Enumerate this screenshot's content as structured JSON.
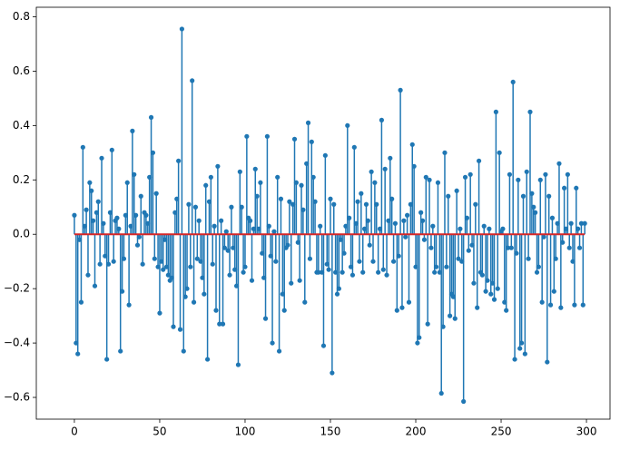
{
  "chart_data": {
    "type": "stem",
    "color": "#1f77b4",
    "baseline_color": "#d62728",
    "xlim": [
      -22.3,
      313.8
    ],
    "ylim": [
      -0.68,
      0.835
    ],
    "xticks": [
      0,
      50,
      100,
      150,
      200,
      250,
      300
    ],
    "yticks": [
      {
        "value": -0.6,
        "label": "−0.6"
      },
      {
        "value": -0.4,
        "label": "−0.4"
      },
      {
        "value": -0.2,
        "label": "−0.2"
      },
      {
        "value": 0,
        "label": "0.0"
      },
      0.2,
      0.4,
      0.6,
      0.8
    ],
    "values": [
      0.07,
      -0.4,
      -0.44,
      -0.02,
      -0.25,
      0.32,
      0.03,
      0.09,
      -0.15,
      0.19,
      0.16,
      0.05,
      -0.19,
      0.08,
      0.12,
      -0.11,
      0.28,
      0.04,
      -0.08,
      -0.46,
      -0.11,
      0.08,
      0.31,
      -0.1,
      0.05,
      0.06,
      0.02,
      -0.43,
      -0.21,
      -0.09,
      0.07,
      0.19,
      -0.26,
      0.03,
      0.38,
      0.22,
      0.07,
      -0.04,
      -0.01,
      0.14,
      -0.11,
      0.08,
      0.07,
      0.04,
      0.21,
      0.43,
      0.3,
      -0.09,
      0.15,
      -0.12,
      -0.29,
      -0.1,
      -0.13,
      -0.02,
      -0.12,
      -0.15,
      -0.17,
      -0.16,
      -0.34,
      0.08,
      0.13,
      0.27,
      -0.35,
      0.755,
      -0.43,
      -0.23,
      -0.2,
      0.11,
      -0.12,
      0.565,
      -0.25,
      0.1,
      -0.09,
      0.05,
      -0.1,
      -0.16,
      -0.22,
      0.18,
      -0.46,
      0.12,
      0.21,
      -0.11,
      0.03,
      -0.28,
      0.25,
      -0.33,
      0.05,
      -0.33,
      -0.05,
      0.01,
      -0.06,
      -0.15,
      0.1,
      -0.05,
      -0.13,
      -0.19,
      -0.48,
      0.23,
      0.1,
      -0.14,
      -0.12,
      0.36,
      0.06,
      0.05,
      -0.17,
      0.02,
      0.24,
      0.14,
      0.02,
      0.19,
      -0.07,
      -0.16,
      -0.31,
      0.36,
      0.03,
      -0.08,
      -0.4,
      0.01,
      -0.1,
      0.21,
      -0.43,
      0.13,
      -0.22,
      -0.28,
      -0.05,
      -0.04,
      0.12,
      -0.18,
      0.11,
      0.35,
      0.19,
      -0.03,
      -0.17,
      0.18,
      0.09,
      -0.25,
      0.26,
      0.41,
      -0.09,
      0.34,
      0.21,
      0.12,
      -0.14,
      -0.14,
      0.03,
      -0.14,
      -0.41,
      0.29,
      -0.11,
      -0.13,
      0.13,
      -0.51,
      0.11,
      -0.14,
      -0.22,
      -0.2,
      -0.02,
      -0.14,
      -0.07,
      0.03,
      0.4,
      0.06,
      -0.12,
      -0.15,
      0.32,
      0.04,
      0.12,
      -0.1,
      0.15,
      -0.14,
      0.02,
      0.11,
      0.05,
      -0.04,
      0.23,
      -0.1,
      0.19,
      0.11,
      -0.14,
      0.02,
      0.42,
      -0.13,
      0.24,
      -0.15,
      0.05,
      0.28,
      0.13,
      -0.1,
      0.04,
      -0.28,
      -0.08,
      0.53,
      -0.27,
      0.05,
      -0.01,
      0.07,
      -0.25,
      0.11,
      0.33,
      0.25,
      -0.12,
      -0.4,
      -0.38,
      0.08,
      0.05,
      -0.02,
      0.21,
      -0.33,
      0.2,
      -0.05,
      0.03,
      -0.14,
      -0.12,
      0.19,
      -0.14,
      -0.585,
      -0.34,
      0.3,
      -0.12,
      0.14,
      -0.3,
      -0.22,
      -0.23,
      -0.31,
      0.16,
      -0.09,
      0.02,
      -0.1,
      -0.615,
      0.21,
      0.06,
      -0.06,
      0.22,
      -0.04,
      -0.18,
      0.11,
      -0.27,
      0.27,
      -0.14,
      -0.15,
      0.03,
      -0.21,
      -0.17,
      0.02,
      -0.22,
      -0.18,
      -0.24,
      0.45,
      -0.2,
      0.3,
      0.01,
      0.02,
      -0.25,
      -0.28,
      -0.05,
      0.22,
      -0.05,
      0.56,
      -0.46,
      -0.07,
      0.2,
      -0.42,
      -0.4,
      0.14,
      -0.44,
      0.23,
      -0.09,
      0.45,
      0.15,
      0.1,
      0.08,
      -0.14,
      -0.12,
      0.2,
      -0.25,
      -0.01,
      0.22,
      -0.47,
      0.14,
      -0.26,
      0.06,
      -0.21,
      -0.09,
      0.04,
      0.26,
      -0.27,
      -0.03,
      0.17,
      0.02,
      0.22,
      -0.05,
      0.04,
      -0.1,
      -0.26,
      0.17,
      0.02,
      -0.05,
      0.04,
      -0.26,
      0.04
    ]
  }
}
